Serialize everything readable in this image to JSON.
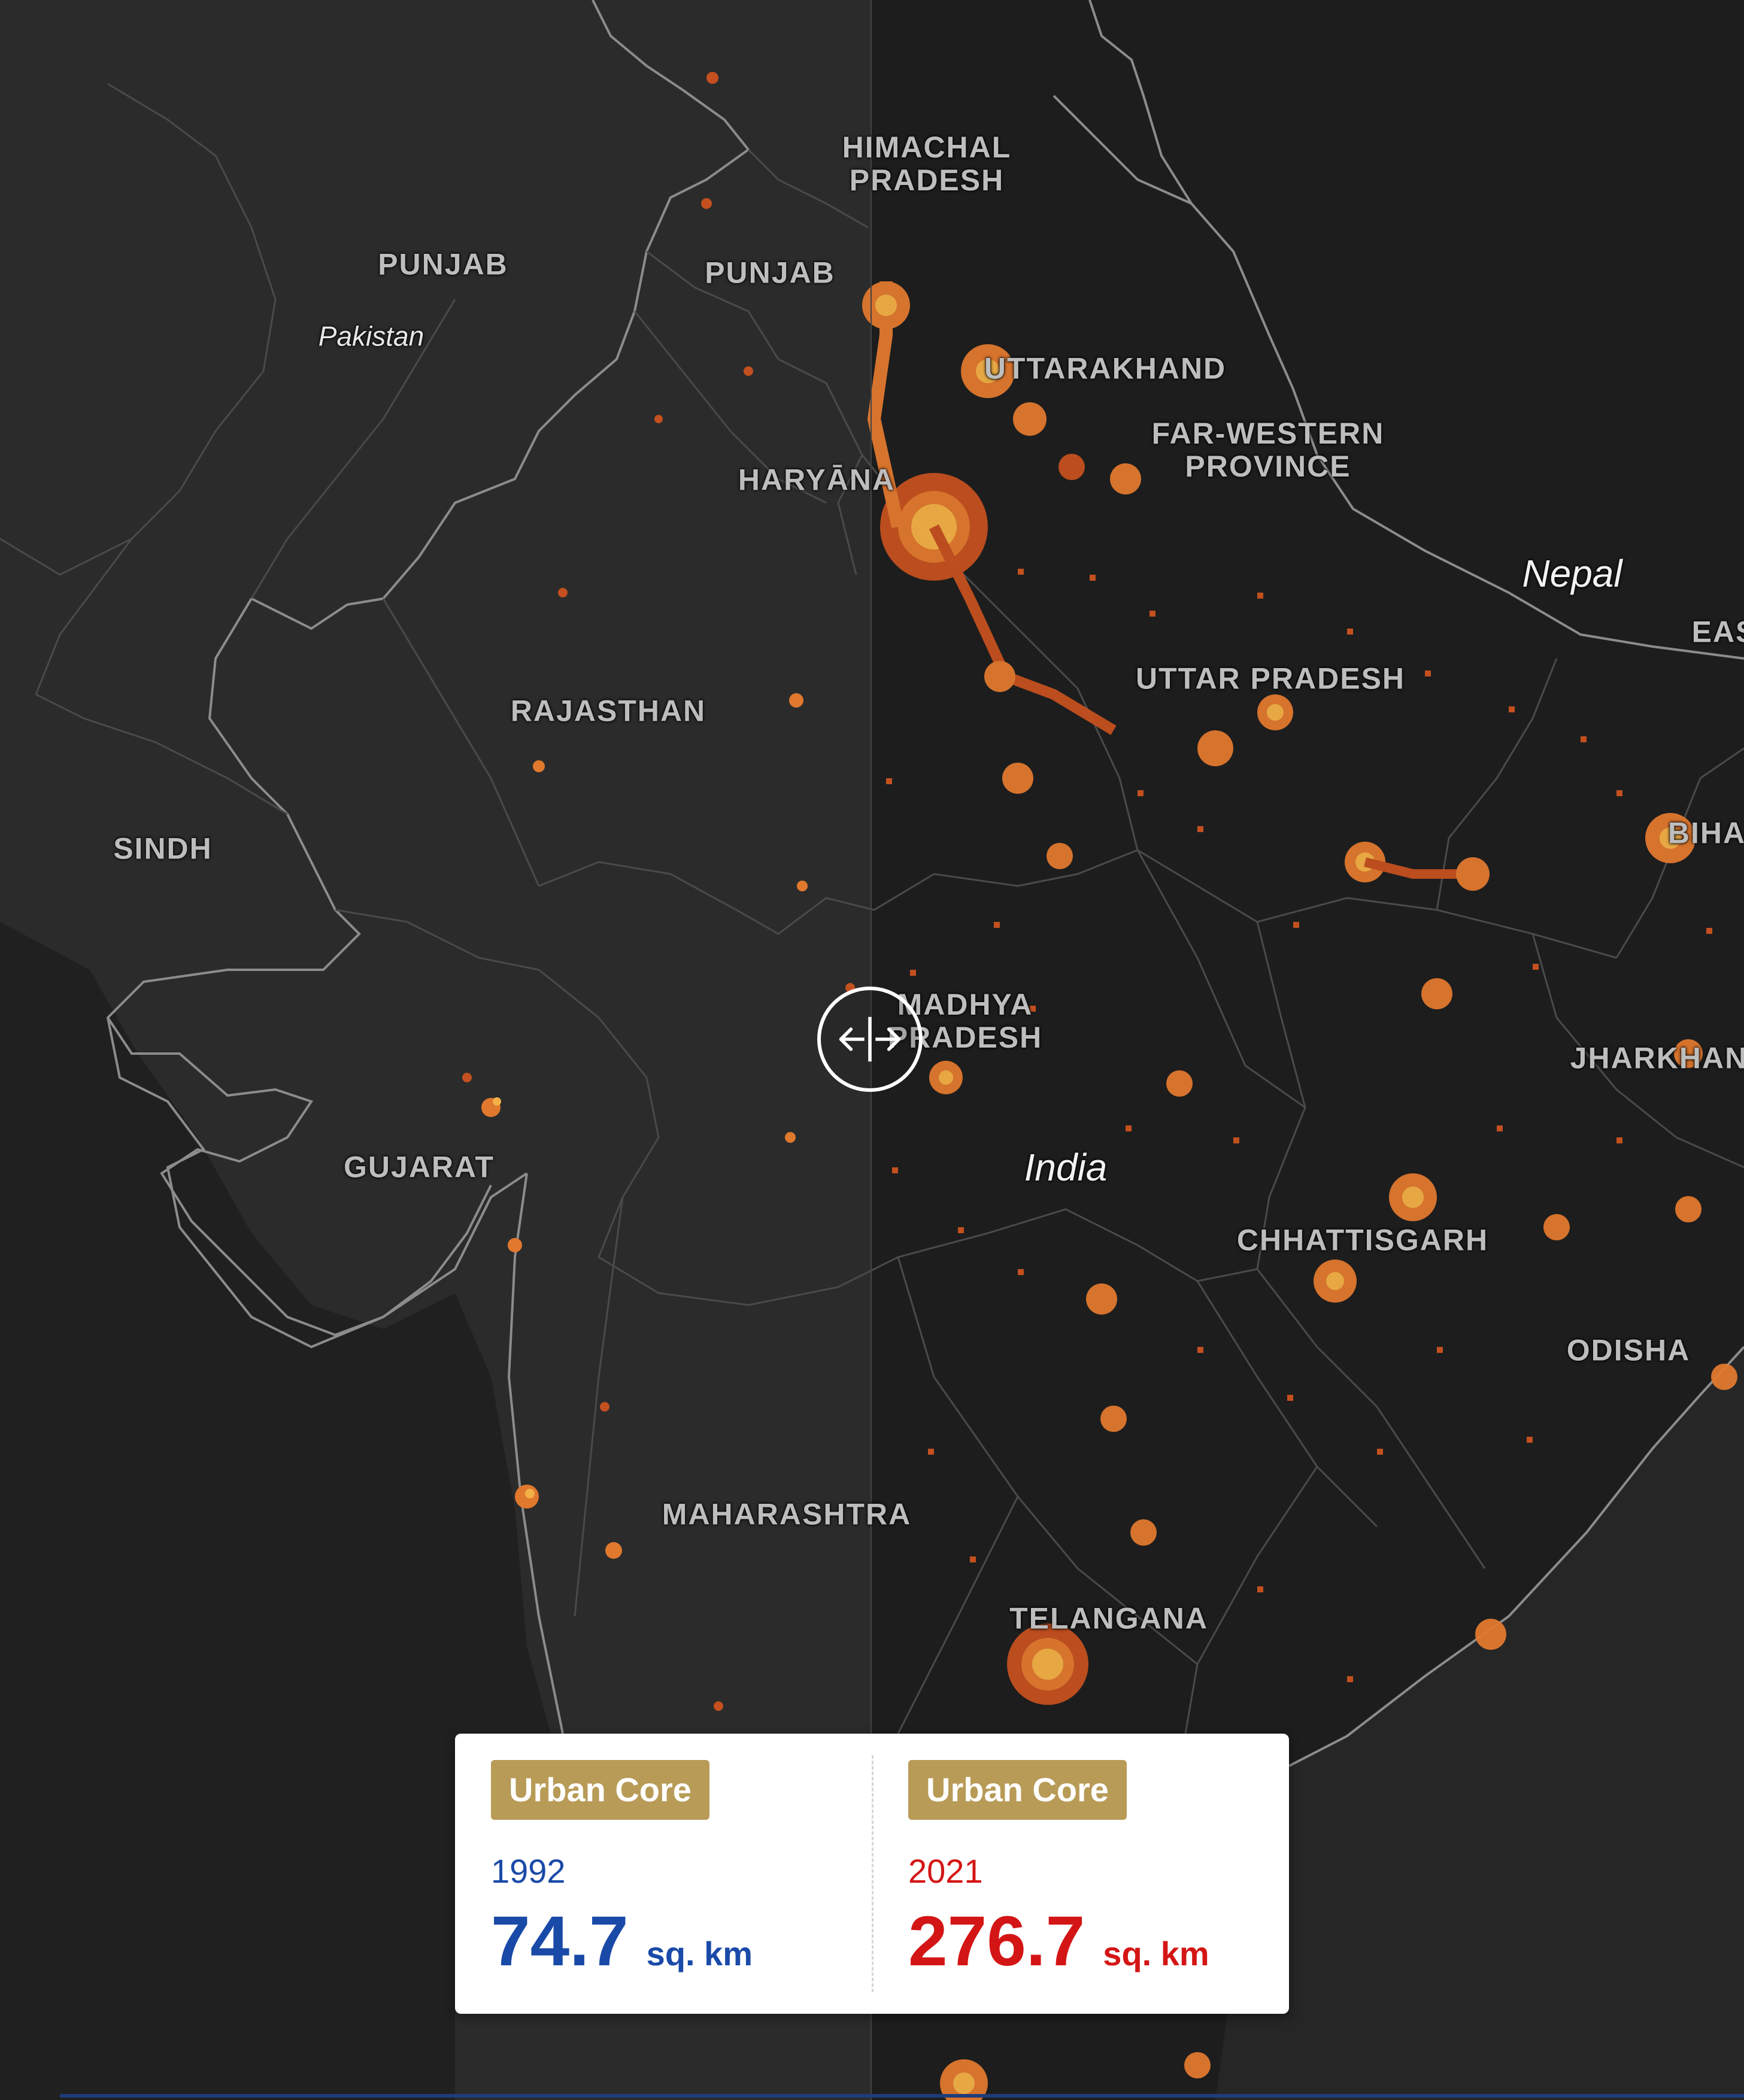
{
  "map": {
    "regions": {
      "himachal_pradesh": "HIMACHAL\nPRADESH",
      "punjab_pk": "PUNJAB",
      "punjab_in": "PUNJAB",
      "uttarakhand": "UTTARAKHAND",
      "far_western": "FAR-WESTERN\nPROVINCE",
      "haryana": "HARYĀNA",
      "rajasthan": "RAJASTHAN",
      "uttar_pradesh": "UTTAR PRADESH",
      "sindh": "SINDH",
      "madhya_pradesh": "MADHYA\nPRADESH",
      "jharkhand": "JHARKHAND",
      "bihar": "BIHAR",
      "eastern": "EAS",
      "gujarat": "GUJARAT",
      "chhattisgarh": "CHHATTISGARH",
      "odisha": "ODISHA",
      "maharashtra": "MAHARASHTRA",
      "telangana": "TELANGANA"
    },
    "countries": {
      "pakistan": "Pakistan",
      "nepal": "Nepal",
      "india": "India"
    },
    "colors": {
      "left_land": "#2c2c2c",
      "right_land": "#1e1e1e",
      "sea": "#232323",
      "border": "#8a8a8a",
      "urban_low": "#c4501f",
      "urban_mid": "#e0782e",
      "urban_core": "#f2b046"
    }
  },
  "slider": {
    "icon": "compare-arrows-icon"
  },
  "stats": {
    "left": {
      "badge": "Urban Core",
      "year": "1992",
      "value": "74.7",
      "unit": "sq. km",
      "color": "#1a4aa8"
    },
    "right": {
      "badge": "Urban Core",
      "year": "2021",
      "value": "276.7",
      "unit": "sq. km",
      "color": "#d41515"
    },
    "badge_color": "#b89b57"
  }
}
